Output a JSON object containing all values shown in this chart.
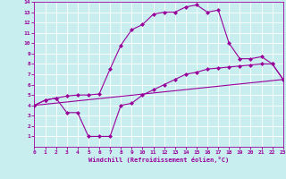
{
  "line1_x": [
    0,
    1,
    2,
    3,
    4,
    5,
    6,
    7,
    8,
    9,
    10,
    11,
    12,
    13,
    14,
    15,
    16,
    17,
    18,
    19,
    20,
    21,
    22,
    23
  ],
  "line1_y": [
    4.0,
    4.5,
    4.7,
    4.9,
    5.0,
    5.0,
    5.1,
    7.5,
    9.8,
    11.3,
    11.8,
    12.8,
    13.0,
    13.0,
    13.5,
    13.7,
    13.0,
    13.2,
    10.0,
    8.5,
    8.5,
    8.7,
    8.0,
    6.5
  ],
  "line2_x": [
    0,
    23
  ],
  "line2_y": [
    4.0,
    6.5
  ],
  "line3_x": [
    0,
    1,
    2,
    3,
    4,
    5,
    6,
    7,
    8,
    9,
    10,
    11,
    12,
    13,
    14,
    15,
    16,
    17,
    18,
    19,
    20,
    21,
    22,
    23
  ],
  "line3_y": [
    4.0,
    4.5,
    4.7,
    3.3,
    3.3,
    1.0,
    1.0,
    1.0,
    4.0,
    4.2,
    5.0,
    5.5,
    6.0,
    6.5,
    7.0,
    7.2,
    7.5,
    7.6,
    7.7,
    7.8,
    7.9,
    8.0,
    8.0,
    6.5
  ],
  "color": "#990099",
  "bg_color": "#c8eef0",
  "grid_color": "#ffffff",
  "xlabel": "Windchill (Refroidissement éolien,°C)",
  "ylim": [
    0,
    14
  ],
  "xlim": [
    0,
    23
  ],
  "yticks": [
    1,
    2,
    3,
    4,
    5,
    6,
    7,
    8,
    9,
    10,
    11,
    12,
    13,
    14
  ],
  "xticks": [
    0,
    1,
    2,
    3,
    4,
    5,
    6,
    7,
    8,
    9,
    10,
    11,
    12,
    13,
    14,
    15,
    16,
    17,
    18,
    19,
    20,
    21,
    22,
    23
  ],
  "marker": "D",
  "markersize": 2.0,
  "linewidth": 0.8,
  "tick_fontsize": 4.5,
  "xlabel_fontsize": 5.0
}
